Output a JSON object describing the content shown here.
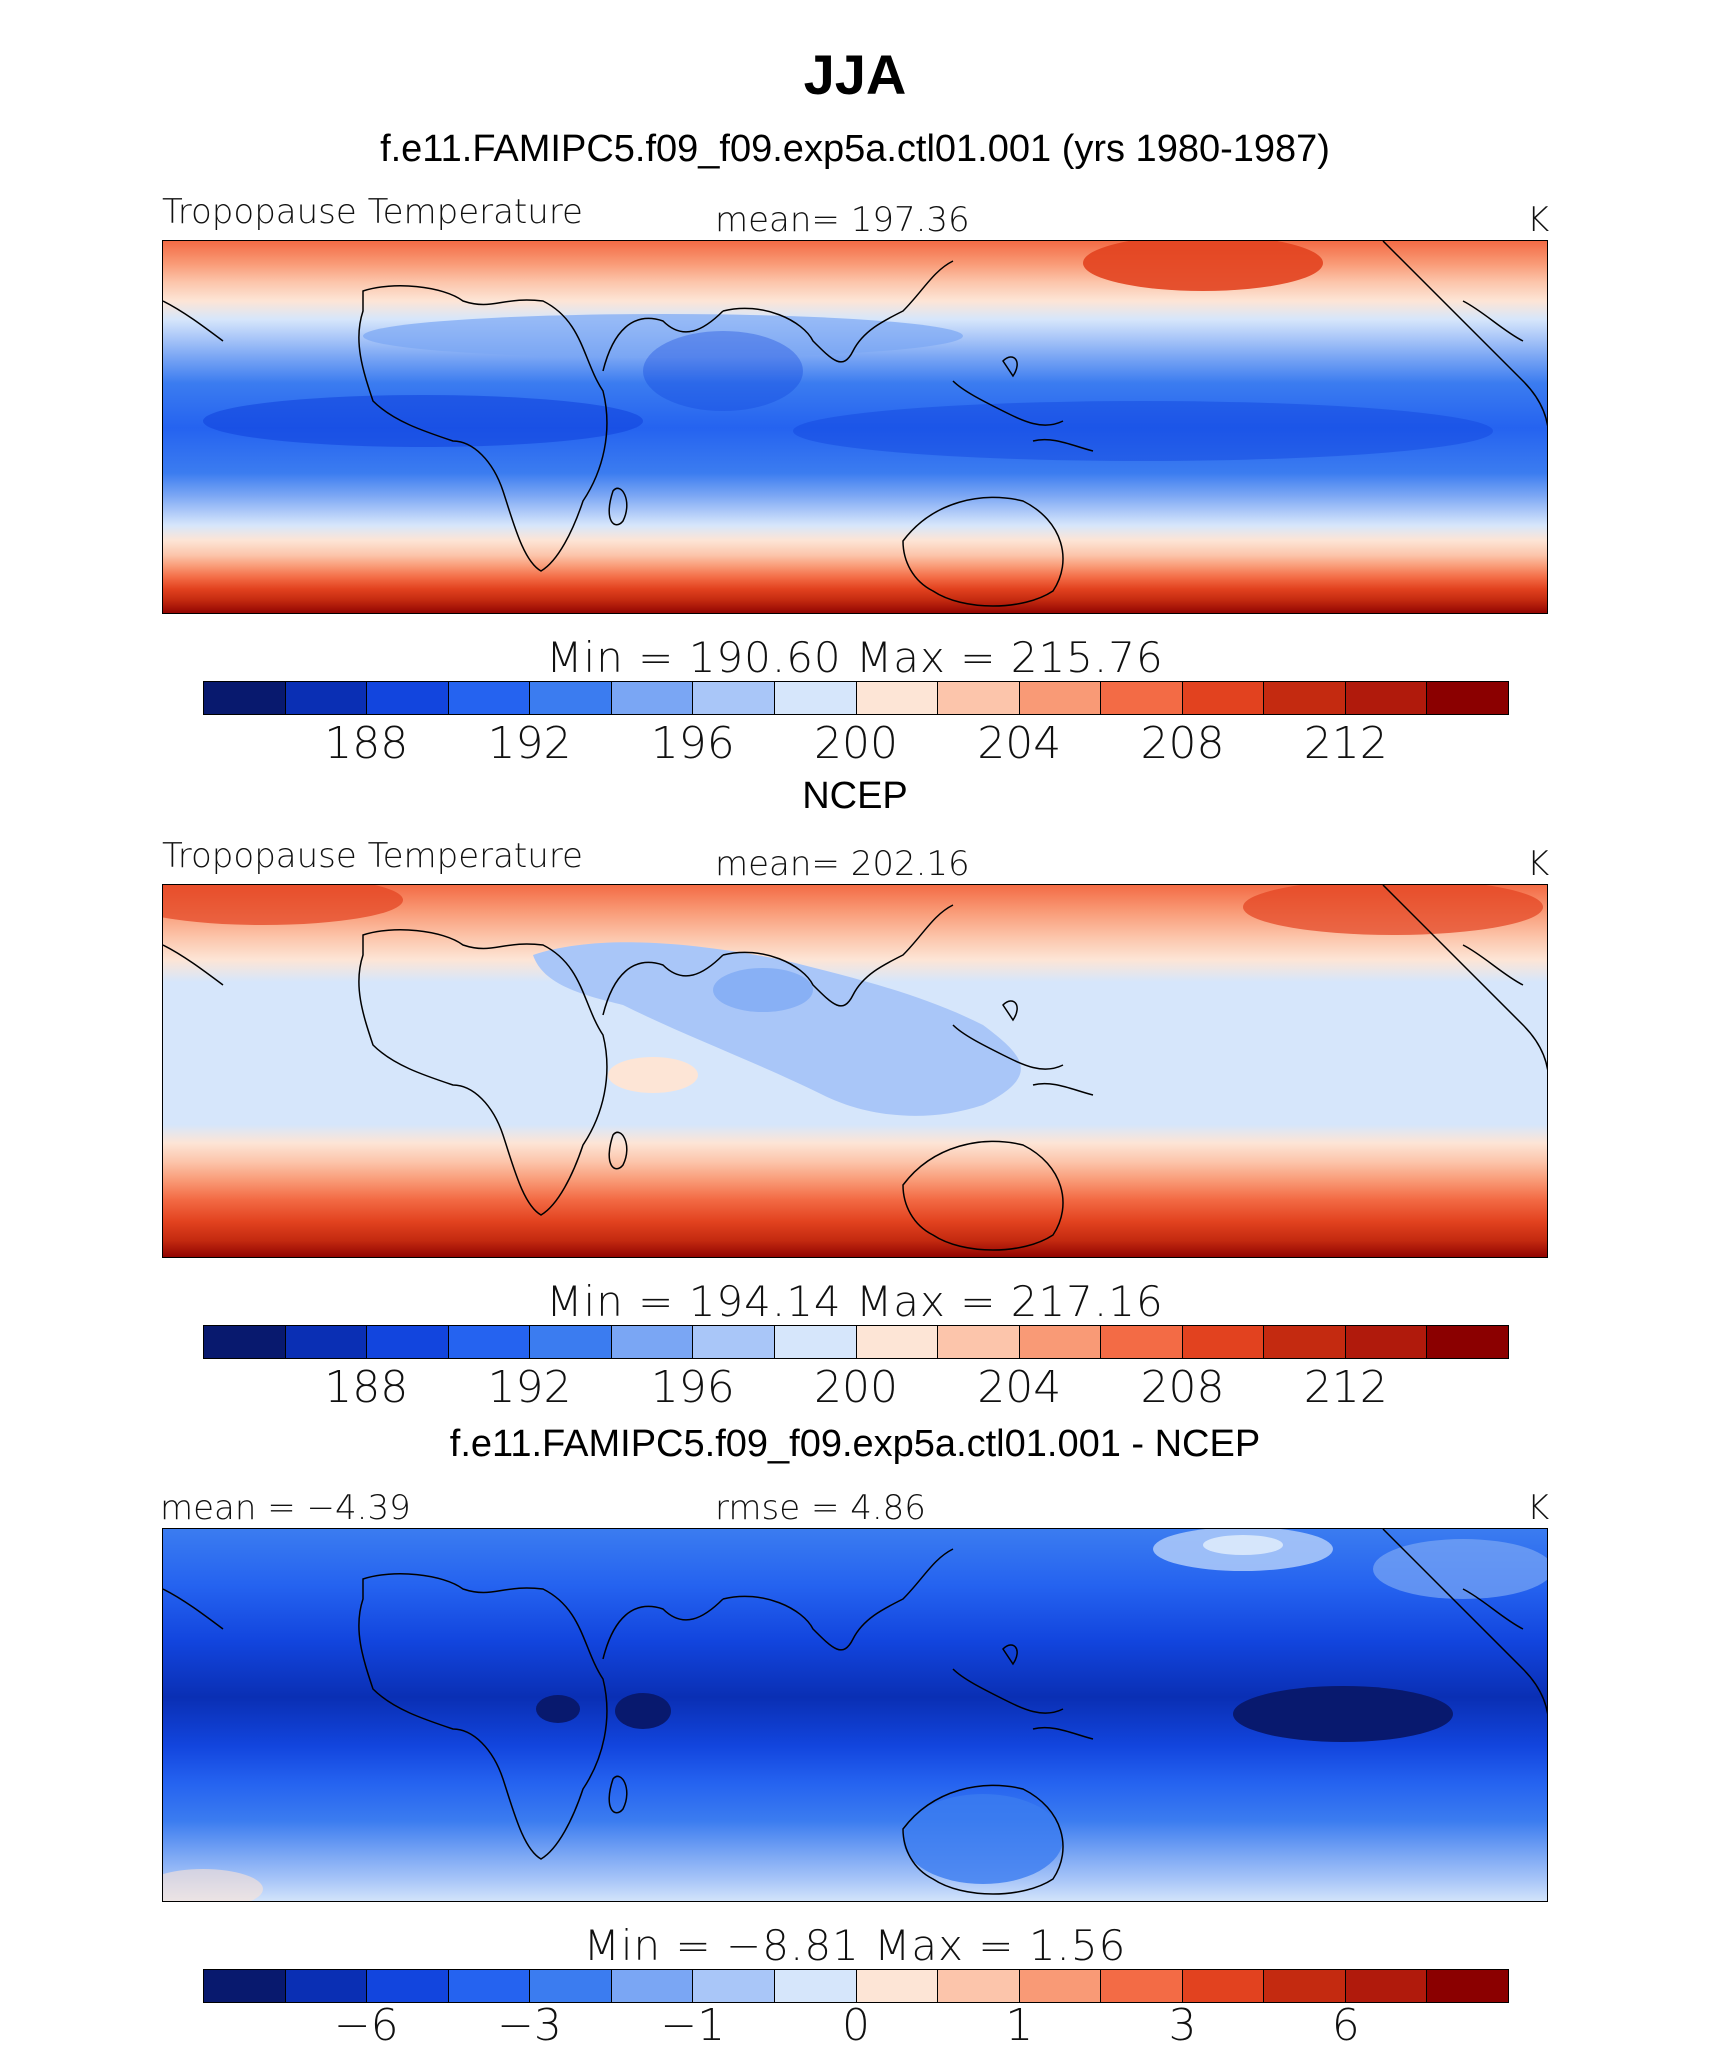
{
  "figure": {
    "title": "JJA",
    "panels": [
      {
        "header": "f.e11.FAMIPC5.f09_f09.exp5a.ctl01.001 (yrs 1980-1987)",
        "left_label": "Tropopause Temperature",
        "center_label": "mean=  197.36",
        "right_label": "K",
        "min_max": "Min  =  190.60  Max  =  215.76"
      },
      {
        "header": "NCEP",
        "left_label": "Tropopause Temperature",
        "center_label": "mean=  202.16",
        "right_label": "K",
        "min_max": "Min  =  194.14  Max  =  217.16"
      },
      {
        "header": "f.e11.FAMIPC5.f09_f09.exp5a.ctl01.001 - NCEP",
        "left_label": "mean  =   −4.39",
        "center_label": "rmse  =     4.86",
        "right_label": "K",
        "min_max": "Min  =    −8.81  Max  =      1.56"
      }
    ]
  },
  "chart_data": [
    {
      "type": "heatmap",
      "title": "Tropopause Temperature",
      "dataset": "f.e11.FAMIPC5.f09_f09.exp5a.ctl01.001 (yrs 1980-1987)",
      "season": "JJA",
      "units": "K",
      "mean": 197.36,
      "min": 190.6,
      "max": 215.76,
      "contour_levels": [
        186,
        188,
        190,
        192,
        194,
        196,
        198,
        200,
        202,
        204,
        206,
        208,
        210,
        212,
        214
      ],
      "colorbar_tick_labels": [
        "188",
        "192",
        "196",
        "200",
        "204",
        "208",
        "212"
      ],
      "colorbar_tick_levels": [
        188,
        192,
        196,
        200,
        204,
        208,
        212
      ],
      "colors": [
        "#08196e",
        "#0a2fb4",
        "#1245de",
        "#2563f0",
        "#3b7cf0",
        "#7aa6f4",
        "#a9c6f8",
        "#d6e6fb",
        "#fde5d6",
        "#fcc5ab",
        "#f99a76",
        "#f36b45",
        "#e2421f",
        "#c42a10",
        "#b01a0c",
        "#8b0000"
      ]
    },
    {
      "type": "heatmap",
      "title": "Tropopause Temperature",
      "dataset": "NCEP",
      "season": "JJA",
      "units": "K",
      "mean": 202.16,
      "min": 194.14,
      "max": 217.16,
      "contour_levels": [
        186,
        188,
        190,
        192,
        194,
        196,
        198,
        200,
        202,
        204,
        206,
        208,
        210,
        212,
        214
      ],
      "colorbar_tick_labels": [
        "188",
        "192",
        "196",
        "200",
        "204",
        "208",
        "212"
      ],
      "colorbar_tick_levels": [
        188,
        192,
        196,
        200,
        204,
        208,
        212
      ],
      "colors": [
        "#08196e",
        "#0a2fb4",
        "#1245de",
        "#2563f0",
        "#3b7cf0",
        "#7aa6f4",
        "#a9c6f8",
        "#d6e6fb",
        "#fde5d6",
        "#fcc5ab",
        "#f99a76",
        "#f36b45",
        "#e2421f",
        "#c42a10",
        "#b01a0c",
        "#8b0000"
      ]
    },
    {
      "type": "heatmap",
      "title": "f.e11.FAMIPC5.f09_f09.exp5a.ctl01.001 - NCEP",
      "season": "JJA",
      "units": "K",
      "mean": -4.39,
      "rmse": 4.86,
      "min": -8.81,
      "max": 1.56,
      "colorbar_tick_labels": [
        "−6",
        "−3",
        "−1",
        "0",
        "1",
        "3",
        "6"
      ],
      "colorbar_tick_levels": [
        -6,
        -3,
        -1,
        0,
        1,
        3,
        6
      ],
      "colors": [
        "#08196e",
        "#0a2fb4",
        "#1245de",
        "#2563f0",
        "#3b7cf0",
        "#7aa6f4",
        "#a9c6f8",
        "#d6e6fb",
        "#fde5d6",
        "#fcc5ab",
        "#f99a76",
        "#f36b45",
        "#e2421f",
        "#c42a10",
        "#b01a0c",
        "#8b0000"
      ]
    }
  ]
}
